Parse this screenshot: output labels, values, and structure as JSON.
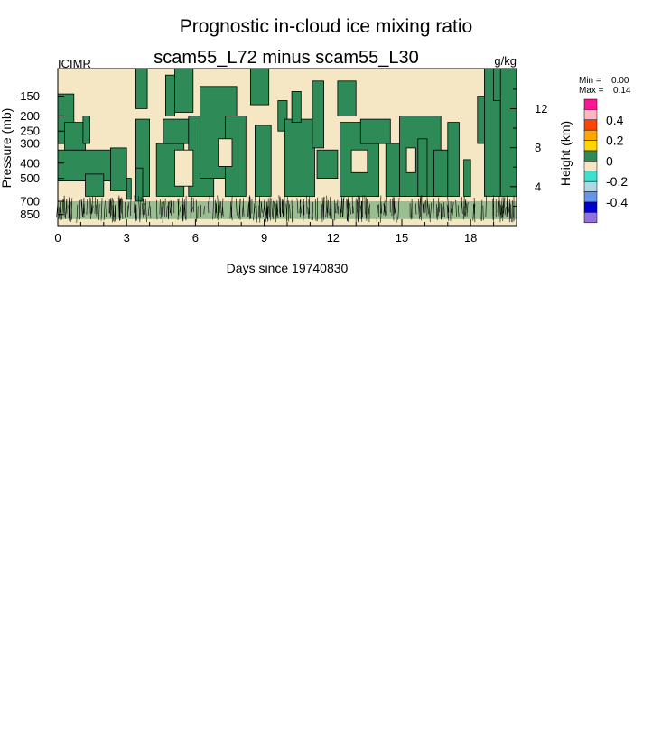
{
  "chart_data": {
    "type": "heatmap",
    "title": "Prognostic in-cloud ice mixing ratio",
    "subtitle": "scam55_L72 minus scam55_L30",
    "left_label": "ICIMR",
    "right_label": "g/kg",
    "xlabel": "Days since 19740830",
    "ylabel": "Pressure (mb)",
    "y2label": "Height (km)",
    "xlim": [
      0,
      20
    ],
    "x_ticks": [
      0,
      3,
      6,
      9,
      12,
      15,
      18
    ],
    "ylim_pressure": [
      1000,
      100
    ],
    "y_scale": "log",
    "y_ticks": [
      150,
      200,
      250,
      300,
      400,
      500,
      700,
      850
    ],
    "y2_ticks": [
      12,
      8,
      4
    ],
    "stats": {
      "min_label": "Min =",
      "min": "0.00",
      "max_label": "Max =",
      "max": "0.14"
    },
    "colorbar": {
      "labels": [
        "0.4",
        "0.2",
        "0",
        "-0.2",
        "-0.4"
      ],
      "colors": [
        "#ff1493",
        "#ffb6c1",
        "#ff4500",
        "#ffa500",
        "#ffd700",
        "#2e8b57",
        "#f5e6c4",
        "#40e0d0",
        "#add8e6",
        "#6495ed",
        "#0000cd",
        "#9370db"
      ]
    },
    "colors": {
      "background": "#f5e6c4",
      "positive": "#2e8b57",
      "contour": "#000000"
    },
    "regions": [
      {
        "x0": 0.0,
        "x1": 0.7,
        "p0": 145,
        "p1": 300
      },
      {
        "x0": 0.0,
        "x1": 2.4,
        "p0": 330,
        "p1": 520
      },
      {
        "x0": 0.3,
        "x1": 1.2,
        "p0": 220,
        "p1": 330
      },
      {
        "x0": 1.1,
        "x1": 1.4,
        "p0": 200,
        "p1": 300
      },
      {
        "x0": 1.2,
        "x1": 2.0,
        "p0": 470,
        "p1": 650
      },
      {
        "x0": 2.3,
        "x1": 3.0,
        "p0": 320,
        "p1": 600
      },
      {
        "x0": 3.0,
        "x1": 3.2,
        "p0": 500,
        "p1": 680
      },
      {
        "x0": 3.4,
        "x1": 4.0,
        "p0": 210,
        "p1": 650
      },
      {
        "x0": 3.4,
        "x1": 3.7,
        "p0": 430,
        "p1": 700
      },
      {
        "x0": 3.4,
        "x1": 3.9,
        "p0": 100,
        "p1": 180
      },
      {
        "x0": 4.3,
        "x1": 5.5,
        "p0": 300,
        "p1": 650
      },
      {
        "x0": 4.6,
        "x1": 5.8,
        "p0": 210,
        "p1": 300
      },
      {
        "x0": 4.7,
        "x1": 5.1,
        "p0": 110,
        "p1": 200
      },
      {
        "x0": 5.1,
        "x1": 5.9,
        "p0": 100,
        "p1": 190
      },
      {
        "x0": 5.7,
        "x1": 6.8,
        "p0": 200,
        "p1": 650
      },
      {
        "x0": 6.2,
        "x1": 7.8,
        "p0": 130,
        "p1": 500
      },
      {
        "x0": 7.3,
        "x1": 8.2,
        "p0": 200,
        "p1": 650
      },
      {
        "x0": 8.4,
        "x1": 9.2,
        "p0": 100,
        "p1": 170
      },
      {
        "x0": 8.6,
        "x1": 9.3,
        "p0": 230,
        "p1": 650
      },
      {
        "x0": 9.6,
        "x1": 10.0,
        "p0": 160,
        "p1": 250
      },
      {
        "x0": 9.9,
        "x1": 11.2,
        "p0": 210,
        "p1": 650
      },
      {
        "x0": 10.2,
        "x1": 10.6,
        "p0": 140,
        "p1": 220
      },
      {
        "x0": 11.1,
        "x1": 11.6,
        "p0": 120,
        "p1": 320
      },
      {
        "x0": 11.3,
        "x1": 12.2,
        "p0": 330,
        "p1": 500
      },
      {
        "x0": 12.2,
        "x1": 13.0,
        "p0": 120,
        "p1": 200
      },
      {
        "x0": 12.3,
        "x1": 14.0,
        "p0": 220,
        "p1": 650
      },
      {
        "x0": 13.2,
        "x1": 14.5,
        "p0": 210,
        "p1": 300
      },
      {
        "x0": 14.3,
        "x1": 15.2,
        "p0": 300,
        "p1": 650
      },
      {
        "x0": 14.9,
        "x1": 16.7,
        "p0": 200,
        "p1": 650
      },
      {
        "x0": 15.7,
        "x1": 16.1,
        "p0": 280,
        "p1": 650
      },
      {
        "x0": 16.4,
        "x1": 17.0,
        "p0": 330,
        "p1": 650
      },
      {
        "x0": 17.0,
        "x1": 17.5,
        "p0": 220,
        "p1": 650
      },
      {
        "x0": 17.7,
        "x1": 18.0,
        "p0": 380,
        "p1": 650
      },
      {
        "x0": 18.3,
        "x1": 18.7,
        "p0": 150,
        "p1": 300
      },
      {
        "x0": 18.6,
        "x1": 19.3,
        "p0": 100,
        "p1": 650
      },
      {
        "x0": 19.0,
        "x1": 19.7,
        "p0": 100,
        "p1": 160
      },
      {
        "x0": 19.3,
        "x1": 20.0,
        "p0": 100,
        "p1": 650
      }
    ],
    "holes": [
      {
        "x0": 5.1,
        "x1": 5.9,
        "p0": 330,
        "p1": 560
      },
      {
        "x0": 7.0,
        "x1": 7.6,
        "p0": 280,
        "p1": 420
      },
      {
        "x0": 12.8,
        "x1": 13.5,
        "p0": 330,
        "p1": 460
      },
      {
        "x0": 15.2,
        "x1": 15.6,
        "p0": 320,
        "p1": 460
      }
    ]
  }
}
